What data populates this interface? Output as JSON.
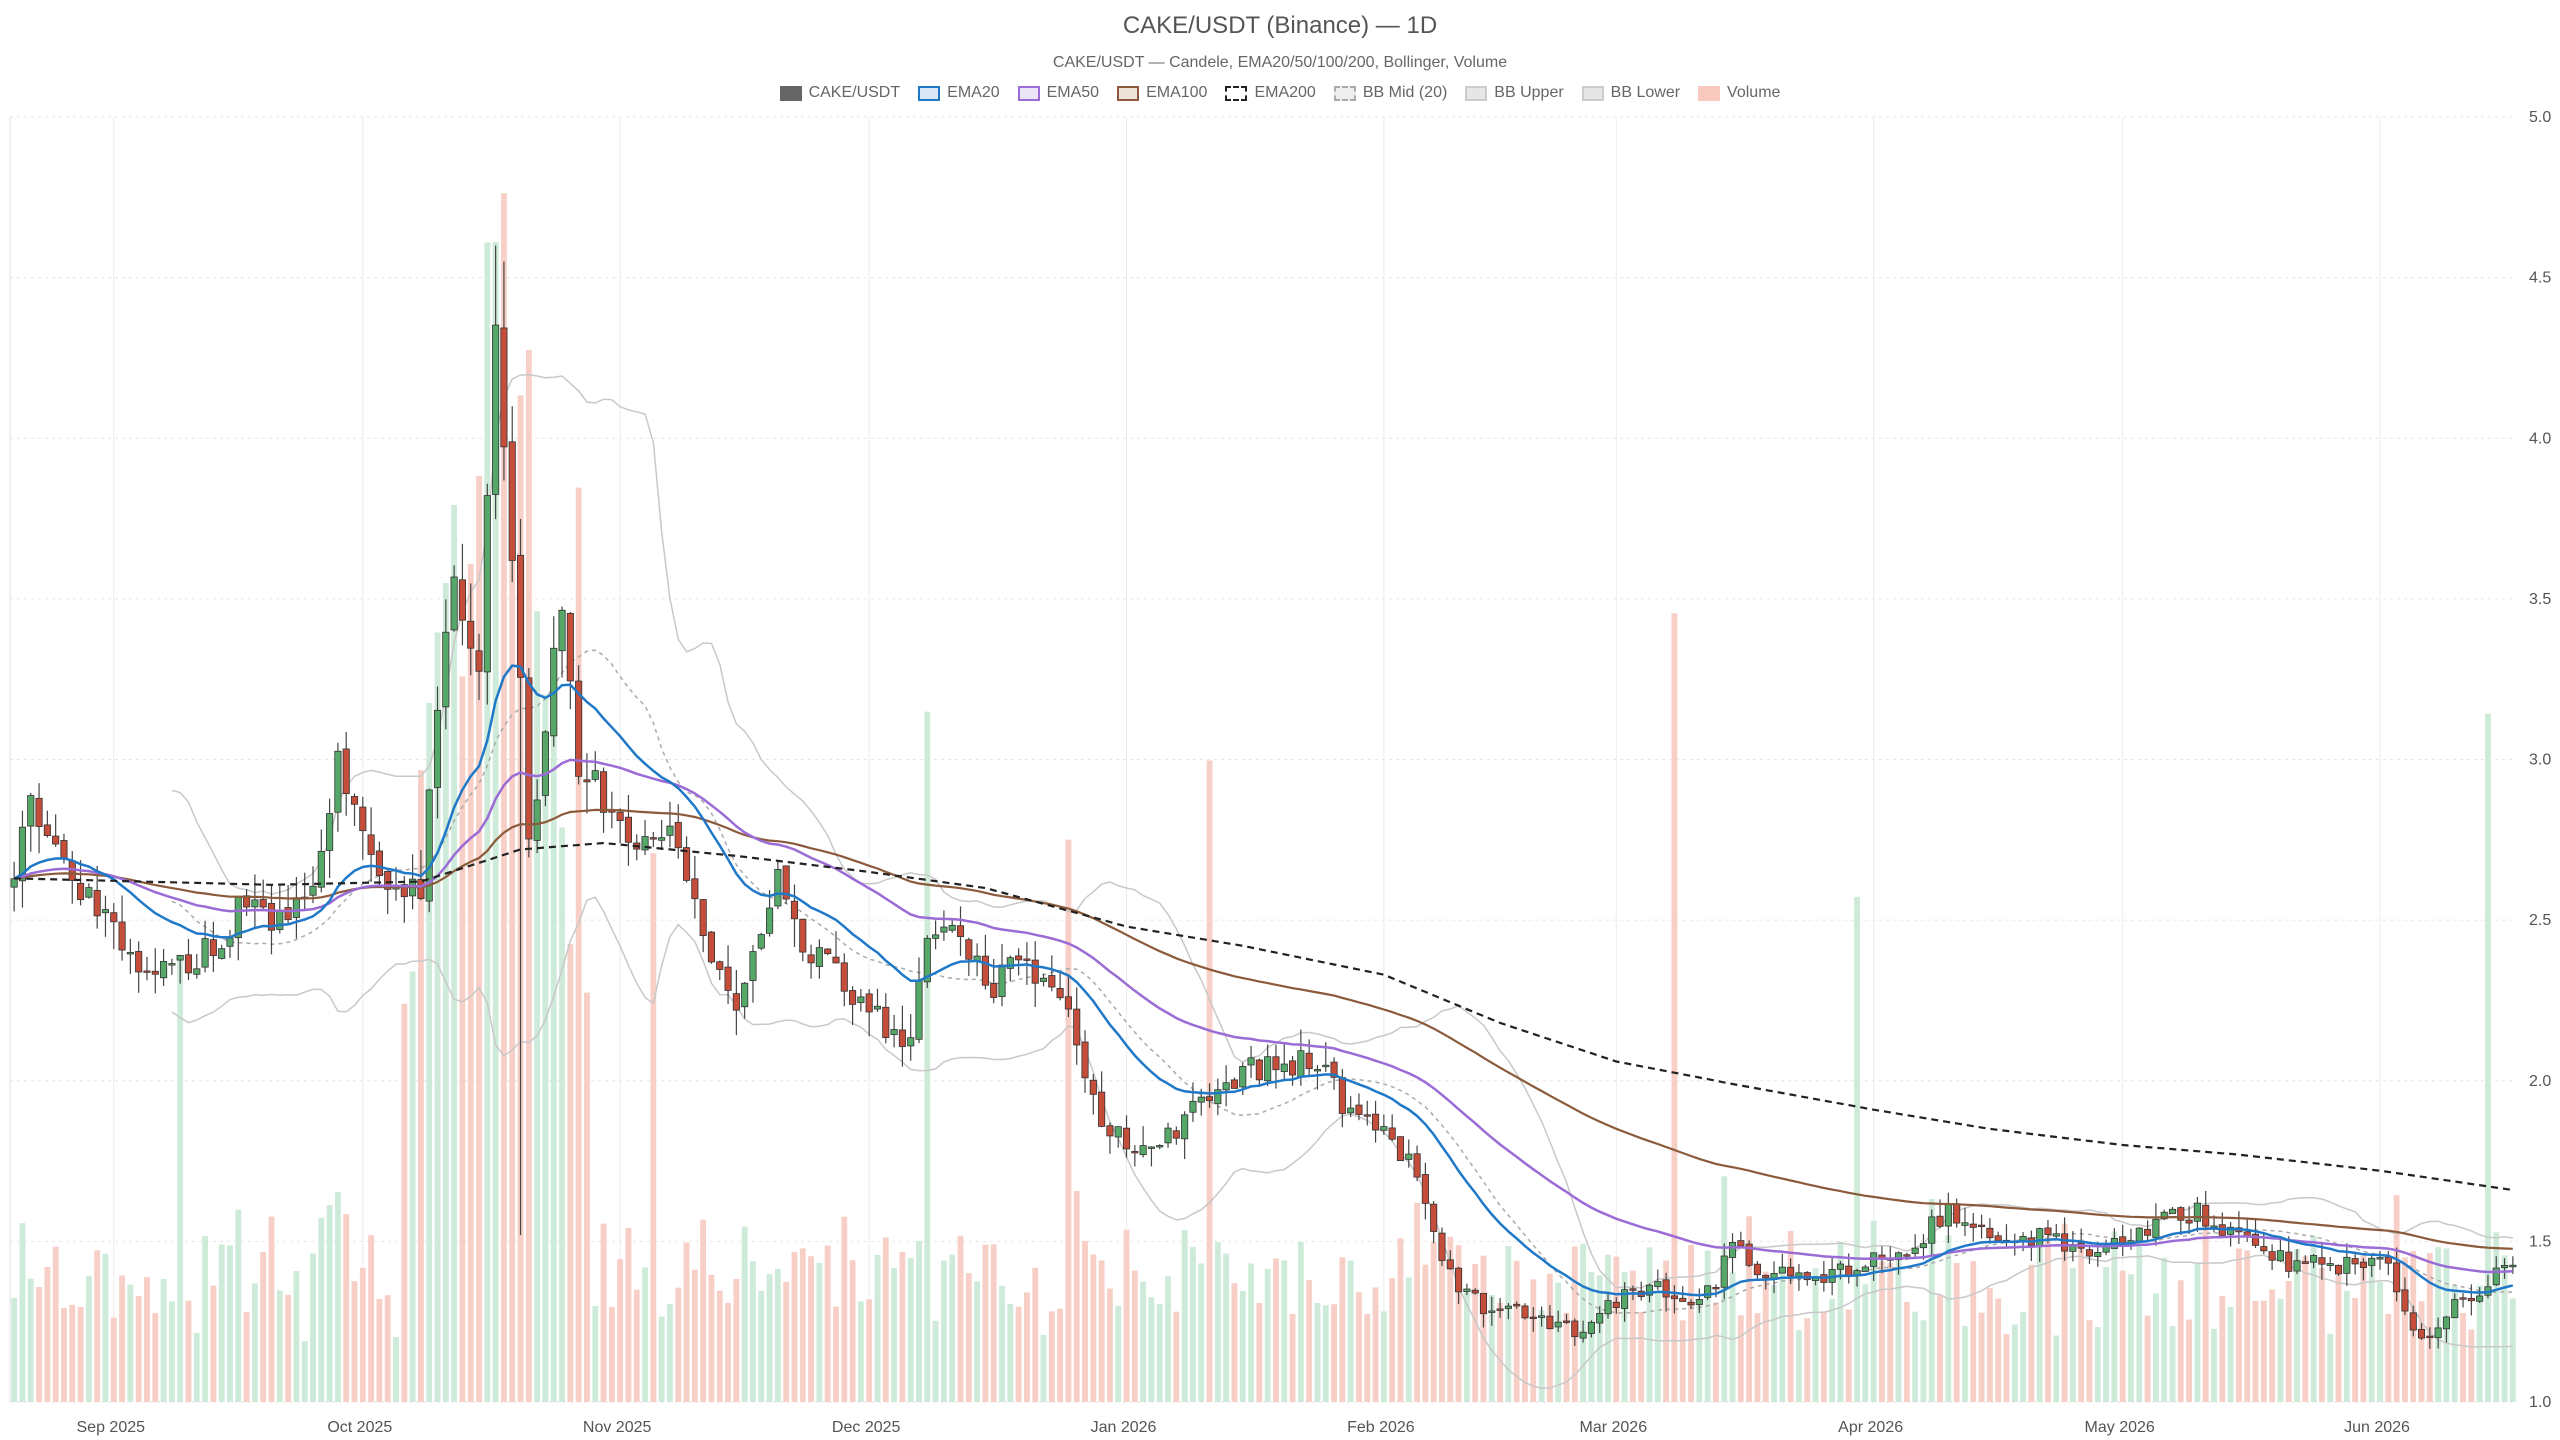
{
  "chart_data": {
    "type": "candlestick",
    "title": "CAKE/USDT (Binance) — 1D",
    "subtitle": "CAKE/USDT — Candele, EMA20/50/100/200, Bollinger, Volume",
    "legend": [
      {
        "name": "CAKE/USDT",
        "fill": "#666666",
        "stroke": "#666666",
        "dash": false
      },
      {
        "name": "EMA20",
        "fill": "#dbe9f7",
        "stroke": "#1f78c8",
        "dash": false
      },
      {
        "name": "EMA50",
        "fill": "#ece4f7",
        "stroke": "#9b6bd6",
        "dash": false
      },
      {
        "name": "EMA100",
        "fill": "#efe4da",
        "stroke": "#8b5a3a",
        "dash": false
      },
      {
        "name": "EMA200",
        "fill": "#ffffff",
        "stroke": "#222222",
        "dash": true
      },
      {
        "name": "BB Mid (20)",
        "fill": "#eeeeee",
        "stroke": "#aaaaaa",
        "dash": true
      },
      {
        "name": "BB Upper",
        "fill": "#e6e6e6",
        "stroke": "#cccccc",
        "dash": false
      },
      {
        "name": "BB Lower",
        "fill": "#e6e6e6",
        "stroke": "#cccccc",
        "dash": false
      },
      {
        "name": "Volume",
        "fill": "#f7c9bf",
        "stroke": "#f7c9bf",
        "dash": false
      }
    ],
    "x_start": "2025-08-20",
    "x_end": "2026-06-17",
    "x_ticks": [
      {
        "date": "2025-09-01",
        "label": "Sep 2025"
      },
      {
        "date": "2025-10-01",
        "label": "Oct 2025"
      },
      {
        "date": "2025-11-01",
        "label": "Nov 2025"
      },
      {
        "date": "2025-12-01",
        "label": "Dec 2025"
      },
      {
        "date": "2026-01-01",
        "label": "Jan 2026"
      },
      {
        "date": "2026-02-01",
        "label": "Feb 2026"
      },
      {
        "date": "2026-03-01",
        "label": "Mar 2026"
      },
      {
        "date": "2026-04-01",
        "label": "Apr 2026"
      },
      {
        "date": "2026-05-01",
        "label": "May 2026"
      },
      {
        "date": "2026-06-01",
        "label": "Jun 2026"
      }
    ],
    "y_ticks": [
      "1.0",
      "1.5",
      "2.0",
      "2.5",
      "3.0",
      "3.5",
      "4.0",
      "4.5",
      "5.0"
    ],
    "ylim": [
      1.0,
      5.0
    ],
    "grid": true,
    "colors": {
      "up": "#55a868",
      "down": "#c44e3a",
      "vol_up": "#cdebd8",
      "vol_down": "#f7cfc6",
      "ema20": "#1f78c8",
      "ema50": "#9b6bd6",
      "ema100": "#8b5a3a",
      "ema200": "#222222",
      "bb_mid": "#aaaaaa",
      "bb_band": "#c8c8c8"
    },
    "close_anchors": [
      [
        "2025-08-20",
        2.63
      ],
      [
        "2025-08-22",
        2.85
      ],
      [
        "2025-08-25",
        2.7
      ],
      [
        "2025-08-29",
        2.58
      ],
      [
        "2025-09-03",
        2.4
      ],
      [
        "2025-09-08",
        2.36
      ],
      [
        "2025-09-13",
        2.43
      ],
      [
        "2025-09-18",
        2.58
      ],
      [
        "2025-09-22",
        2.47
      ],
      [
        "2025-09-26",
        2.68
      ],
      [
        "2025-09-28",
        3.05
      ],
      [
        "2025-09-30",
        2.82
      ],
      [
        "2025-10-04",
        2.6
      ],
      [
        "2025-10-08",
        2.62
      ],
      [
        "2025-10-10",
        3.1
      ],
      [
        "2025-10-12",
        3.6
      ],
      [
        "2025-10-15",
        3.3
      ],
      [
        "2025-10-17",
        4.35
      ],
      [
        "2025-10-18",
        4.0
      ],
      [
        "2025-10-20",
        3.2
      ],
      [
        "2025-10-21",
        2.7
      ],
      [
        "2025-10-23",
        3.1
      ],
      [
        "2025-10-25",
        3.5
      ],
      [
        "2025-10-27",
        3.0
      ],
      [
        "2025-10-30",
        2.9
      ],
      [
        "2025-11-02",
        2.7
      ],
      [
        "2025-11-06",
        2.8
      ],
      [
        "2025-11-09",
        2.6
      ],
      [
        "2025-11-12",
        2.42
      ],
      [
        "2025-11-15",
        2.2
      ],
      [
        "2025-11-18",
        2.45
      ],
      [
        "2025-11-20",
        2.6
      ],
      [
        "2025-11-24",
        2.4
      ],
      [
        "2025-11-28",
        2.3
      ],
      [
        "2025-12-02",
        2.2
      ],
      [
        "2025-12-05",
        2.07
      ],
      [
        "2025-12-08",
        2.4
      ],
      [
        "2025-12-12",
        2.47
      ],
      [
        "2025-12-16",
        2.3
      ],
      [
        "2025-12-20",
        2.37
      ],
      [
        "2025-12-24",
        2.3
      ],
      [
        "2025-12-26",
        2.15
      ],
      [
        "2025-12-29",
        1.85
      ],
      [
        "2025-12-31",
        1.82
      ],
      [
        "2026-01-04",
        1.81
      ],
      [
        "2026-01-07",
        1.85
      ],
      [
        "2026-01-10",
        1.97
      ],
      [
        "2026-01-14",
        2.02
      ],
      [
        "2026-01-18",
        2.04
      ],
      [
        "2026-01-22",
        2.07
      ],
      [
        "2026-01-24",
        2.05
      ],
      [
        "2026-01-28",
        1.9
      ],
      [
        "2026-02-01",
        1.85
      ],
      [
        "2026-02-04",
        1.75
      ],
      [
        "2026-02-07",
        1.52
      ],
      [
        "2026-02-10",
        1.35
      ],
      [
        "2026-02-13",
        1.29
      ],
      [
        "2026-02-16",
        1.31
      ],
      [
        "2026-02-20",
        1.26
      ],
      [
        "2026-02-25",
        1.22
      ],
      [
        "2026-03-01",
        1.31
      ],
      [
        "2026-03-05",
        1.37
      ],
      [
        "2026-03-09",
        1.31
      ],
      [
        "2026-03-13",
        1.34
      ],
      [
        "2026-03-15",
        1.51
      ],
      [
        "2026-03-18",
        1.42
      ],
      [
        "2026-03-22",
        1.41
      ],
      [
        "2026-03-27",
        1.4
      ],
      [
        "2026-04-01",
        1.44
      ],
      [
        "2026-04-06",
        1.5
      ],
      [
        "2026-04-10",
        1.6
      ],
      [
        "2026-04-13",
        1.55
      ],
      [
        "2026-04-17",
        1.5
      ],
      [
        "2026-04-22",
        1.52
      ],
      [
        "2026-04-27",
        1.47
      ],
      [
        "2026-05-01",
        1.5
      ],
      [
        "2026-05-06",
        1.57
      ],
      [
        "2026-05-10",
        1.6
      ],
      [
        "2026-05-14",
        1.52
      ],
      [
        "2026-05-18",
        1.45
      ],
      [
        "2026-05-22",
        1.43
      ],
      [
        "2026-05-27",
        1.42
      ],
      [
        "2026-05-30",
        1.45
      ],
      [
        "2026-06-02",
        1.42
      ],
      [
        "2026-06-05",
        1.22
      ],
      [
        "2026-06-07",
        1.2
      ],
      [
        "2026-06-10",
        1.32
      ],
      [
        "2026-06-13",
        1.35
      ],
      [
        "2026-06-17",
        1.43
      ]
    ],
    "ema200_anchors": [
      [
        "2025-08-20",
        2.63
      ],
      [
        "2025-09-20",
        2.61
      ],
      [
        "2025-10-08",
        2.62
      ],
      [
        "2025-10-20",
        2.72
      ],
      [
        "2025-10-30",
        2.74
      ],
      [
        "2025-11-15",
        2.7
      ],
      [
        "2025-12-01",
        2.65
      ],
      [
        "2025-12-15",
        2.6
      ],
      [
        "2026-01-01",
        2.48
      ],
      [
        "2026-01-15",
        2.42
      ],
      [
        "2026-02-01",
        2.33
      ],
      [
        "2026-02-15",
        2.18
      ],
      [
        "2026-03-01",
        2.06
      ],
      [
        "2026-03-15",
        1.99
      ],
      [
        "2026-04-01",
        1.91
      ],
      [
        "2026-04-15",
        1.85
      ],
      [
        "2026-05-01",
        1.8
      ],
      [
        "2026-05-15",
        1.77
      ],
      [
        "2026-06-01",
        1.72
      ],
      [
        "2026-06-17",
        1.66
      ]
    ],
    "volume_scale_max": 5.0
  }
}
